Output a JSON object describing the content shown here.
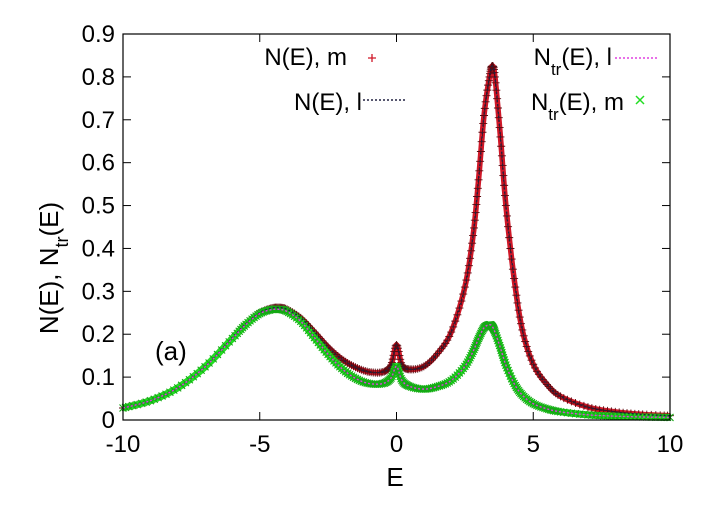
{
  "chart_data": {
    "type": "scatter",
    "xlabel": "E",
    "ylabel_parts": [
      "N(E), N",
      "tr",
      "(E)"
    ],
    "annotation": "(a)",
    "xlim": [
      -10,
      10
    ],
    "ylim": [
      0,
      0.9
    ],
    "xticks": [
      -10,
      -5,
      0,
      5,
      10
    ],
    "yticks": [
      0,
      0.1,
      0.2,
      0.3,
      0.4,
      0.5,
      0.6,
      0.7,
      0.8,
      0.9
    ],
    "grid": false,
    "legend_position": "top",
    "series": [
      {
        "legend_parts": [
          "N(E), m",
          "",
          ""
        ],
        "marker": "plus",
        "color": "#d01828",
        "x": [
          -10,
          -9,
          -8,
          -7,
          -6,
          -5.5,
          -5,
          -4.6,
          -4.3,
          -4,
          -3.5,
          -3,
          -2.5,
          -2,
          -1.5,
          -1,
          -0.5,
          -0.2,
          0,
          0.2,
          0.5,
          1,
          1.5,
          2,
          2.5,
          2.8,
          3,
          3.2,
          3.4,
          3.5,
          3.6,
          3.8,
          4,
          4.3,
          4.6,
          5,
          5.5,
          6,
          7,
          8,
          9,
          10
        ],
        "y": [
          0.028,
          0.045,
          0.075,
          0.125,
          0.192,
          0.225,
          0.25,
          0.26,
          0.262,
          0.258,
          0.238,
          0.205,
          0.17,
          0.142,
          0.123,
          0.112,
          0.112,
          0.128,
          0.175,
          0.128,
          0.118,
          0.125,
          0.155,
          0.205,
          0.31,
          0.43,
          0.56,
          0.71,
          0.8,
          0.825,
          0.8,
          0.66,
          0.5,
          0.33,
          0.21,
          0.13,
          0.083,
          0.055,
          0.03,
          0.019,
          0.013,
          0.01
        ]
      },
      {
        "legend_parts": [
          "N(E), l",
          "",
          ""
        ],
        "marker": "dotted-line",
        "color": "#202040",
        "x": [
          -10,
          -9,
          -8,
          -7,
          -6,
          -5.5,
          -5,
          -4.6,
          -4.3,
          -4,
          -3.5,
          -3,
          -2.5,
          -2,
          -1.5,
          -1,
          -0.5,
          -0.2,
          0,
          0.2,
          0.5,
          1,
          1.5,
          2,
          2.5,
          2.8,
          3,
          3.2,
          3.4,
          3.5,
          3.6,
          3.8,
          4,
          4.3,
          4.6,
          5,
          5.5,
          6,
          7,
          8,
          9,
          10
        ],
        "y": [
          0.028,
          0.045,
          0.075,
          0.125,
          0.192,
          0.225,
          0.25,
          0.26,
          0.262,
          0.258,
          0.238,
          0.205,
          0.17,
          0.142,
          0.123,
          0.112,
          0.112,
          0.128,
          0.175,
          0.128,
          0.118,
          0.125,
          0.155,
          0.205,
          0.31,
          0.43,
          0.56,
          0.71,
          0.8,
          0.825,
          0.8,
          0.66,
          0.5,
          0.33,
          0.21,
          0.13,
          0.083,
          0.055,
          0.03,
          0.019,
          0.013,
          0.01
        ]
      },
      {
        "legend_parts": [
          "N",
          "tr",
          "(E), l"
        ],
        "marker": "dotted-line",
        "color": "#e040e0",
        "x": [
          -10,
          -9,
          -8,
          -7,
          -6,
          -5.5,
          -5,
          -4.6,
          -4.3,
          -4,
          -3.5,
          -3,
          -2.5,
          -2,
          -1.5,
          -1,
          -0.5,
          -0.2,
          0,
          0.2,
          0.5,
          1,
          1.5,
          2,
          2.5,
          2.8,
          3,
          3.2,
          3.4,
          3.5,
          3.6,
          3.8,
          4,
          4.3,
          4.6,
          5,
          5.5,
          6,
          7,
          8,
          9,
          10
        ],
        "y": [
          0.028,
          0.045,
          0.075,
          0.124,
          0.19,
          0.223,
          0.248,
          0.257,
          0.258,
          0.253,
          0.23,
          0.192,
          0.153,
          0.12,
          0.097,
          0.085,
          0.085,
          0.098,
          0.125,
          0.092,
          0.078,
          0.072,
          0.078,
          0.092,
          0.125,
          0.16,
          0.19,
          0.215,
          0.222,
          0.218,
          0.205,
          0.168,
          0.128,
          0.085,
          0.058,
          0.038,
          0.026,
          0.019,
          0.012,
          0.009,
          0.007,
          0.006
        ]
      },
      {
        "legend_parts": [
          "N",
          "tr",
          "(E), m"
        ],
        "marker": "x",
        "color": "#22dd22",
        "x": [
          -10,
          -9,
          -8,
          -7,
          -6,
          -5.5,
          -5,
          -4.6,
          -4.3,
          -4,
          -3.5,
          -3,
          -2.5,
          -2,
          -1.5,
          -1,
          -0.5,
          -0.2,
          0,
          0.2,
          0.5,
          1,
          1.5,
          2,
          2.5,
          2.8,
          3,
          3.2,
          3.4,
          3.5,
          3.6,
          3.8,
          4,
          4.3,
          4.6,
          5,
          5.5,
          6,
          7,
          8,
          9,
          10
        ],
        "y": [
          0.028,
          0.045,
          0.075,
          0.124,
          0.19,
          0.223,
          0.248,
          0.257,
          0.258,
          0.253,
          0.23,
          0.192,
          0.153,
          0.12,
          0.097,
          0.085,
          0.085,
          0.098,
          0.125,
          0.092,
          0.078,
          0.072,
          0.078,
          0.092,
          0.125,
          0.16,
          0.19,
          0.215,
          0.222,
          0.218,
          0.205,
          0.168,
          0.128,
          0.085,
          0.058,
          0.038,
          0.026,
          0.019,
          0.012,
          0.009,
          0.007,
          0.006
        ]
      }
    ]
  }
}
